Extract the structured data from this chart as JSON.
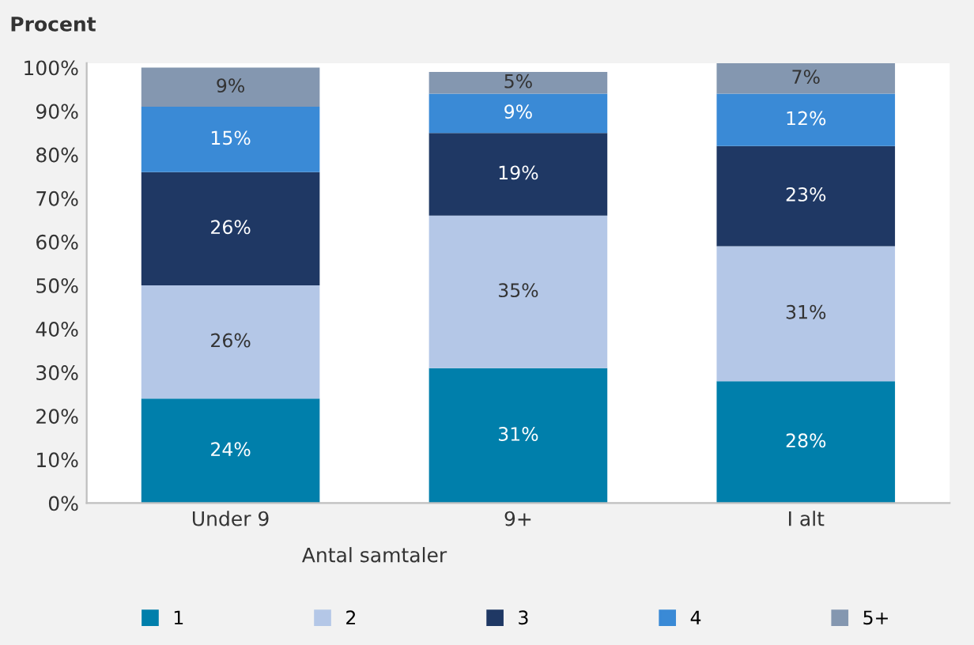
{
  "chart_data": {
    "type": "bar",
    "stacked": true,
    "ylabel": "Procent",
    "xlabel": "Antal samtaler",
    "categories": [
      "Under 9",
      "9+",
      "I alt"
    ],
    "series": [
      {
        "name": "1",
        "color": "#007fab",
        "values": [
          24,
          31,
          28
        ]
      },
      {
        "name": "2",
        "color": "#b4c7e7",
        "values": [
          26,
          35,
          31
        ]
      },
      {
        "name": "3",
        "color": "#1f3864",
        "values": [
          26,
          19,
          23
        ]
      },
      {
        "name": "4",
        "color": "#3a8ad6",
        "values": [
          15,
          9,
          12
        ]
      },
      {
        "name": "5+",
        "color": "#8497b0",
        "values": [
          9,
          5,
          7
        ]
      }
    ],
    "ylim": [
      0,
      101
    ],
    "yticks": [
      {
        "value": 0,
        "label": "0%"
      },
      {
        "value": 10,
        "label": "10%"
      },
      {
        "value": 20,
        "label": "20%"
      },
      {
        "value": 30,
        "label": "30%"
      },
      {
        "value": 40,
        "label": "40%"
      },
      {
        "value": 50,
        "label": "50%"
      },
      {
        "value": 60,
        "label": "60%"
      },
      {
        "value": 70,
        "label": "70%"
      },
      {
        "value": 80,
        "label": "80%"
      },
      {
        "value": 90,
        "label": "90%"
      },
      {
        "value": 100,
        "label": "100%"
      }
    ],
    "value_labels": [
      [
        "24%",
        "31%",
        "28%"
      ],
      [
        "26%",
        "35%",
        "31%"
      ],
      [
        "26%",
        "19%",
        "23%"
      ],
      [
        "15%",
        "9%",
        "12%"
      ],
      [
        "9%",
        "5%",
        "7%"
      ]
    ],
    "grid": false,
    "legend": "bottom"
  }
}
